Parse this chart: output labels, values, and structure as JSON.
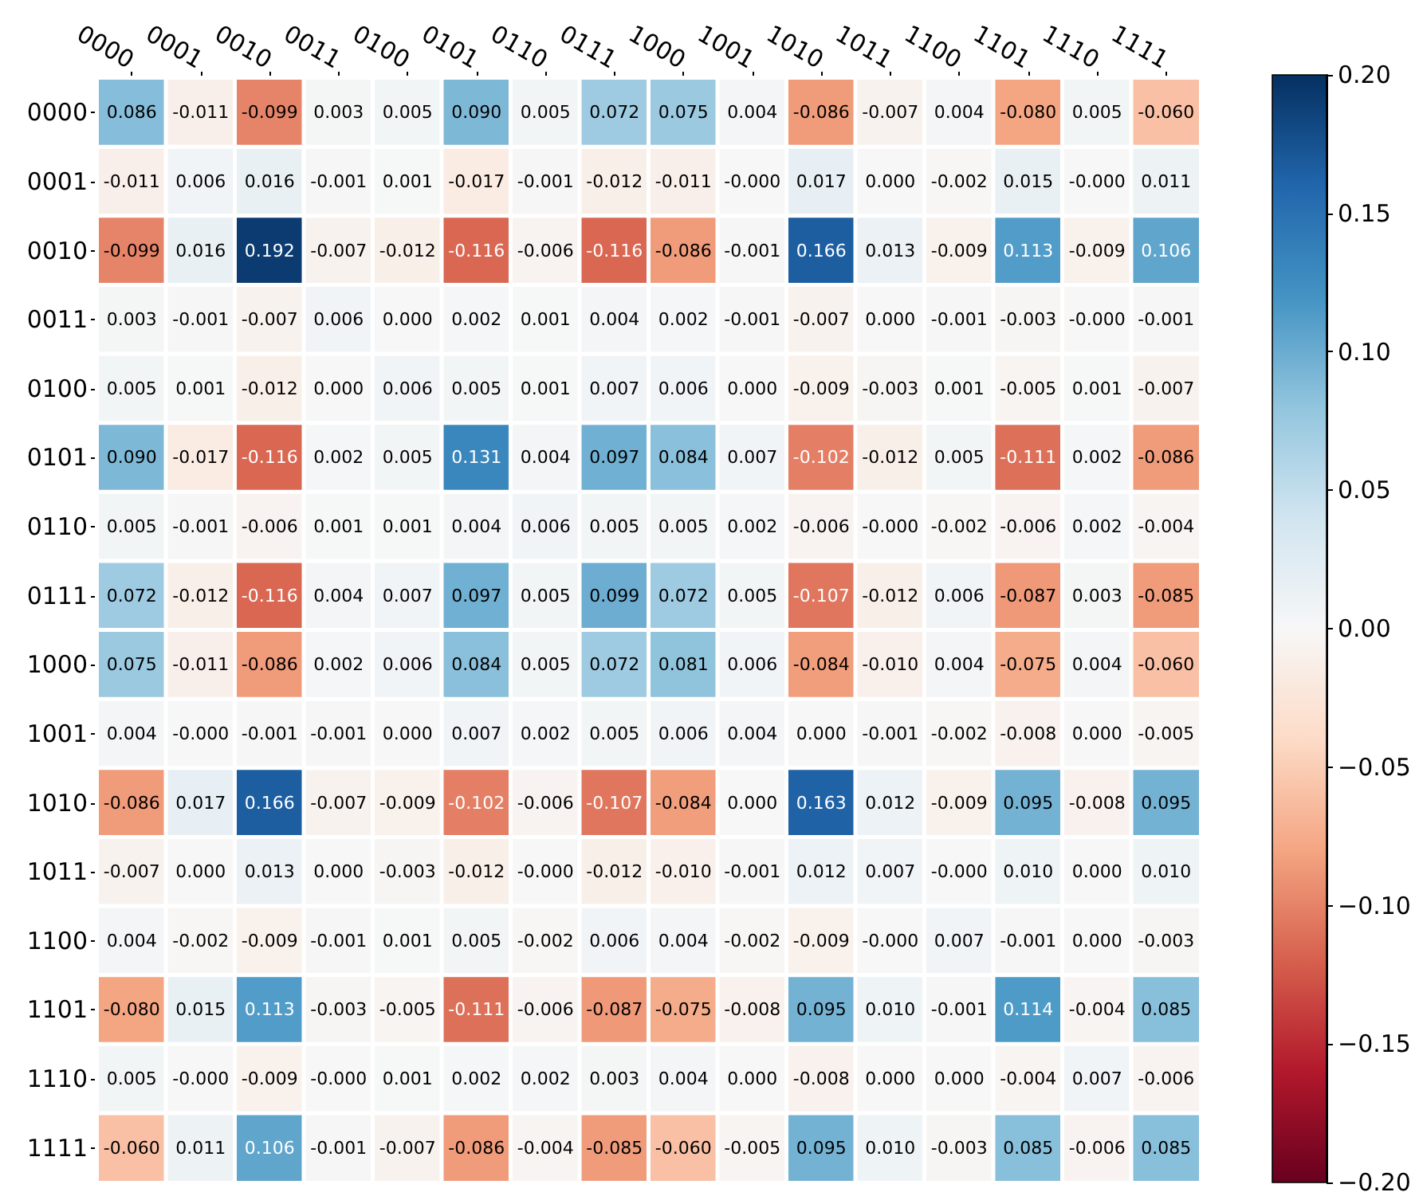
{
  "chart_data": {
    "type": "heatmap",
    "categories": [
      "0000",
      "0001",
      "0010",
      "0011",
      "0100",
      "0101",
      "0110",
      "0111",
      "1000",
      "1001",
      "1010",
      "1011",
      "1100",
      "1101",
      "1110",
      "1111"
    ],
    "y_categories": [
      "0000",
      "0001",
      "0010",
      "0011",
      "0100",
      "0101",
      "0110",
      "0111",
      "1000",
      "1001",
      "1010",
      "1011",
      "1100",
      "1101",
      "1110",
      "1111"
    ],
    "cells": [
      [
        0.086,
        -0.011,
        -0.099,
        0.003,
        0.005,
        0.09,
        0.005,
        0.072,
        0.075,
        0.004,
        -0.086,
        -0.007,
        0.004,
        -0.08,
        0.005,
        -0.06
      ],
      [
        -0.011,
        0.006,
        0.016,
        -0.001,
        0.001,
        -0.017,
        -0.001,
        -0.012,
        -0.011,
        0,
        0.017,
        0,
        -0.002,
        0.015,
        0,
        0.011
      ],
      [
        -0.099,
        0.016,
        0.192,
        -0.007,
        -0.012,
        -0.116,
        -0.006,
        -0.116,
        -0.086,
        -0.001,
        0.166,
        0.013,
        -0.009,
        0.113,
        -0.009,
        0.106
      ],
      [
        0.003,
        -0.001,
        -0.007,
        0.006,
        0,
        0.002,
        0.001,
        0.004,
        0.002,
        -0.001,
        -0.007,
        0,
        -0.001,
        -0.003,
        0,
        -0.001
      ],
      [
        0.005,
        0.001,
        -0.012,
        0,
        0.006,
        0.005,
        0.001,
        0.007,
        0.006,
        0,
        -0.009,
        -0.003,
        0.001,
        -0.005,
        0.001,
        -0.007
      ],
      [
        0.09,
        -0.017,
        -0.116,
        0.002,
        0.005,
        0.131,
        0.004,
        0.097,
        0.084,
        0.007,
        -0.102,
        -0.012,
        0.005,
        -0.111,
        0.002,
        -0.086
      ],
      [
        0.005,
        -0.001,
        -0.006,
        0.001,
        0.001,
        0.004,
        0.006,
        0.005,
        0.005,
        0.002,
        -0.006,
        0,
        -0.002,
        -0.006,
        0.002,
        -0.004
      ],
      [
        0.072,
        -0.012,
        -0.116,
        0.004,
        0.007,
        0.097,
        0.005,
        0.099,
        0.072,
        0.005,
        -0.107,
        -0.012,
        0.006,
        -0.087,
        0.003,
        -0.085
      ],
      [
        0.075,
        -0.011,
        -0.086,
        0.002,
        0.006,
        0.084,
        0.005,
        0.072,
        0.081,
        0.006,
        -0.084,
        -0.01,
        0.004,
        -0.075,
        0.004,
        -0.06
      ],
      [
        0.004,
        0,
        -0.001,
        -0.001,
        0,
        0.007,
        0.002,
        0.005,
        0.006,
        0.004,
        0,
        -0.001,
        -0.002,
        -0.008,
        0,
        -0.005
      ],
      [
        -0.086,
        0.017,
        0.166,
        -0.007,
        -0.009,
        -0.102,
        -0.006,
        -0.107,
        -0.084,
        0,
        0.163,
        0.012,
        -0.009,
        0.095,
        -0.008,
        0.095
      ],
      [
        -0.007,
        0,
        0.013,
        0,
        -0.003,
        -0.012,
        0,
        -0.012,
        -0.01,
        -0.001,
        0.012,
        0.007,
        0,
        0.01,
        0,
        0.01
      ],
      [
        0.004,
        -0.002,
        -0.009,
        -0.001,
        0.001,
        0.005,
        -0.002,
        0.006,
        0.004,
        -0.002,
        -0.009,
        0,
        0.007,
        -0.001,
        0,
        -0.003
      ],
      [
        -0.08,
        0.015,
        0.113,
        -0.003,
        -0.005,
        -0.111,
        -0.006,
        -0.087,
        -0.075,
        -0.008,
        0.095,
        0.01,
        -0.001,
        0.114,
        -0.004,
        0.085
      ],
      [
        0.005,
        0,
        -0.009,
        0,
        0.001,
        0.002,
        0.002,
        0.003,
        0.004,
        0,
        -0.008,
        0,
        0,
        -0.004,
        0.007,
        -0.006
      ],
      [
        -0.06,
        0.011,
        0.106,
        -0.001,
        -0.007,
        -0.086,
        -0.004,
        -0.085,
        -0.06,
        -0.005,
        0.095,
        0.01,
        -0.003,
        0.085,
        -0.006,
        0.085
      ]
    ],
    "cell_labels": [
      [
        "0.086",
        "-0.011",
        "-0.099",
        "0.003",
        "0.005",
        "0.090",
        "0.005",
        "0.072",
        "0.075",
        "0.004",
        "-0.086",
        "-0.007",
        "0.004",
        "-0.080",
        "0.005",
        "-0.060"
      ],
      [
        "-0.011",
        "0.006",
        "0.016",
        "-0.001",
        "0.001",
        "-0.017",
        "-0.001",
        "-0.012",
        "-0.011",
        "-0.000",
        "0.017",
        "0.000",
        "-0.002",
        "0.015",
        "-0.000",
        "0.011"
      ],
      [
        "-0.099",
        "0.016",
        "0.192",
        "-0.007",
        "-0.012",
        "-0.116",
        "-0.006",
        "-0.116",
        "-0.086",
        "-0.001",
        "0.166",
        "0.013",
        "-0.009",
        "0.113",
        "-0.009",
        "0.106"
      ],
      [
        "0.003",
        "-0.001",
        "-0.007",
        "0.006",
        "0.000",
        "0.002",
        "0.001",
        "0.004",
        "0.002",
        "-0.001",
        "-0.007",
        "0.000",
        "-0.001",
        "-0.003",
        "-0.000",
        "-0.001"
      ],
      [
        "0.005",
        "0.001",
        "-0.012",
        "0.000",
        "0.006",
        "0.005",
        "0.001",
        "0.007",
        "0.006",
        "0.000",
        "-0.009",
        "-0.003",
        "0.001",
        "-0.005",
        "0.001",
        "-0.007"
      ],
      [
        "0.090",
        "-0.017",
        "-0.116",
        "0.002",
        "0.005",
        "0.131",
        "0.004",
        "0.097",
        "0.084",
        "0.007",
        "-0.102",
        "-0.012",
        "0.005",
        "-0.111",
        "0.002",
        "-0.086"
      ],
      [
        "0.005",
        "-0.001",
        "-0.006",
        "0.001",
        "0.001",
        "0.004",
        "0.006",
        "0.005",
        "0.005",
        "0.002",
        "-0.006",
        "-0.000",
        "-0.002",
        "-0.006",
        "0.002",
        "-0.004"
      ],
      [
        "0.072",
        "-0.012",
        "-0.116",
        "0.004",
        "0.007",
        "0.097",
        "0.005",
        "0.099",
        "0.072",
        "0.005",
        "-0.107",
        "-0.012",
        "0.006",
        "-0.087",
        "0.003",
        "-0.085"
      ],
      [
        "0.075",
        "-0.011",
        "-0.086",
        "0.002",
        "0.006",
        "0.084",
        "0.005",
        "0.072",
        "0.081",
        "0.006",
        "-0.084",
        "-0.010",
        "0.004",
        "-0.075",
        "0.004",
        "-0.060"
      ],
      [
        "0.004",
        "-0.000",
        "-0.001",
        "-0.001",
        "0.000",
        "0.007",
        "0.002",
        "0.005",
        "0.006",
        "0.004",
        "0.000",
        "-0.001",
        "-0.002",
        "-0.008",
        "0.000",
        "-0.005"
      ],
      [
        "-0.086",
        "0.017",
        "0.166",
        "-0.007",
        "-0.009",
        "-0.102",
        "-0.006",
        "-0.107",
        "-0.084",
        "0.000",
        "0.163",
        "0.012",
        "-0.009",
        "0.095",
        "-0.008",
        "0.095"
      ],
      [
        "-0.007",
        "0.000",
        "0.013",
        "0.000",
        "-0.003",
        "-0.012",
        "-0.000",
        "-0.012",
        "-0.010",
        "-0.001",
        "0.012",
        "0.007",
        "-0.000",
        "0.010",
        "0.000",
        "0.010"
      ],
      [
        "0.004",
        "-0.002",
        "-0.009",
        "-0.001",
        "0.001",
        "0.005",
        "-0.002",
        "0.006",
        "0.004",
        "-0.002",
        "-0.009",
        "-0.000",
        "0.007",
        "-0.001",
        "0.000",
        "-0.003"
      ],
      [
        "-0.080",
        "0.015",
        "0.113",
        "-0.003",
        "-0.005",
        "-0.111",
        "-0.006",
        "-0.087",
        "-0.075",
        "-0.008",
        "0.095",
        "0.010",
        "-0.001",
        "0.114",
        "-0.004",
        "0.085"
      ],
      [
        "0.005",
        "-0.000",
        "-0.009",
        "-0.000",
        "0.001",
        "0.002",
        "0.002",
        "0.003",
        "0.004",
        "0.000",
        "-0.008",
        "0.000",
        "0.000",
        "-0.004",
        "0.007",
        "-0.006"
      ],
      [
        "-0.060",
        "0.011",
        "0.106",
        "-0.001",
        "-0.007",
        "-0.086",
        "-0.004",
        "-0.085",
        "-0.060",
        "-0.005",
        "0.095",
        "0.010",
        "-0.003",
        "0.085",
        "-0.006",
        "0.085"
      ]
    ],
    "data_labels": true,
    "clim": [
      -0.2,
      0.2
    ],
    "cticks": [
      {
        "value": -0.2,
        "label": "−0.20"
      },
      {
        "value": -0.15,
        "label": "−0.15"
      },
      {
        "value": -0.1,
        "label": "−0.10"
      },
      {
        "value": -0.05,
        "label": "−0.05"
      },
      {
        "value": 0,
        "label": "0.00"
      },
      0.05,
      {
        "value": 0.1,
        "label": "0.10"
      },
      0.15,
      {
        "value": 0.2,
        "label": "0.20"
      }
    ]
  }
}
